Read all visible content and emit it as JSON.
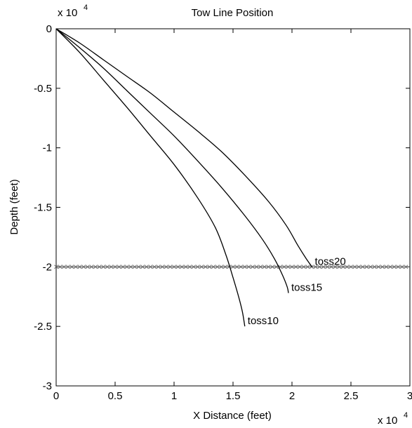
{
  "chart_data": {
    "type": "line",
    "title": "Tow Line Position",
    "xlabel": "X Distance (feet)",
    "ylabel": "Depth (feet)",
    "x_multiplier": {
      "base": "x 10",
      "exponent": "4"
    },
    "y_multiplier": {
      "base": "x 10",
      "exponent": "4"
    },
    "xlim": [
      0,
      30000
    ],
    "ylim": [
      -30000,
      0
    ],
    "x_ticks": [
      0,
      5000,
      10000,
      15000,
      20000,
      25000,
      30000
    ],
    "x_tick_labels": [
      "0",
      "0.5",
      "1",
      "1.5",
      "2",
      "2.5",
      "3"
    ],
    "y_ticks": [
      0,
      -5000,
      -10000,
      -15000,
      -20000,
      -25000,
      -30000
    ],
    "y_tick_labels": [
      "0",
      "-0.5",
      "-1",
      "-1.5",
      "-2",
      "-2.5",
      "-3"
    ],
    "grid": false,
    "series": [
      {
        "name": "toss20",
        "x": [
          0,
          2000,
          4000,
          6000,
          8000,
          10000,
          12000,
          14000,
          16000,
          18000,
          19500,
          20500,
          21200,
          21700
        ],
        "y": [
          0,
          -1200,
          -2600,
          -4000,
          -5400,
          -7000,
          -8600,
          -10300,
          -12300,
          -14500,
          -16500,
          -18200,
          -19300,
          -20000
        ]
      },
      {
        "name": "toss15",
        "x": [
          0,
          2000,
          4000,
          6000,
          8000,
          10000,
          12000,
          14000,
          16000,
          17500,
          18500,
          19200,
          19600,
          19700
        ],
        "y": [
          0,
          -1600,
          -3300,
          -5200,
          -7100,
          -9000,
          -11100,
          -13300,
          -15700,
          -17700,
          -19300,
          -20700,
          -21700,
          -22200
        ]
      },
      {
        "name": "toss10",
        "x": [
          0,
          2000,
          4000,
          6000,
          8000,
          10000,
          12000,
          13500,
          14400,
          15000,
          15500,
          15800,
          16000
        ],
        "y": [
          0,
          -2000,
          -4300,
          -6600,
          -9000,
          -11400,
          -14200,
          -16700,
          -19000,
          -20900,
          -22600,
          -23800,
          -25000
        ]
      }
    ],
    "reference_line": {
      "y": -20000,
      "marker": "x"
    }
  }
}
